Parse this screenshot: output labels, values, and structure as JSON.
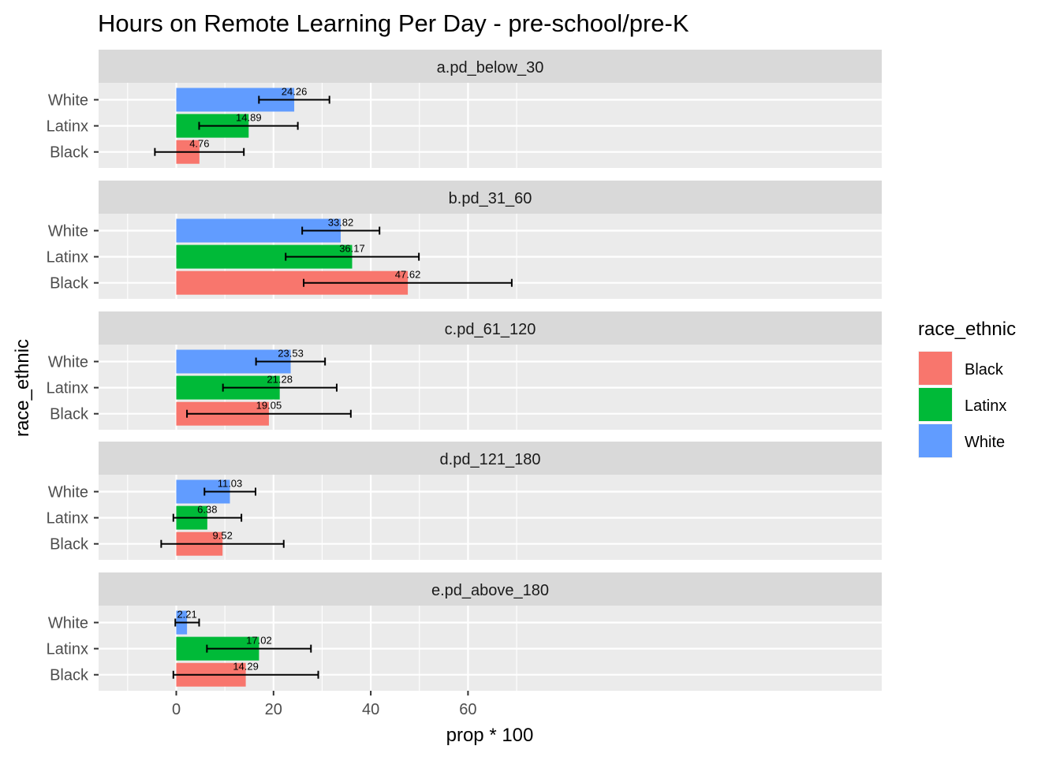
{
  "chart_data": {
    "type": "bar",
    "title": "Hours on Remote Learning Per Day  - pre-school/pre-K",
    "xlabel": "prop * 100",
    "ylabel": "race_ethnic",
    "xlim": [
      -8,
      72
    ],
    "x_ticks": [
      0,
      20,
      40,
      60
    ],
    "grid": true,
    "legend": {
      "title": "race_ethnic",
      "position": "right",
      "entries": [
        {
          "label": "Black",
          "color": "#F8766D"
        },
        {
          "label": "Latinx",
          "color": "#00BA38"
        },
        {
          "label": "White",
          "color": "#619CFF"
        }
      ]
    },
    "categories": [
      "White",
      "Latinx",
      "Black"
    ],
    "facets": [
      {
        "label": "a.pd_below_30",
        "bars": [
          {
            "group": "White",
            "value": 24.26,
            "value_label": "24.26",
            "ci_low": 17.0,
            "ci_high": 31.5
          },
          {
            "group": "Latinx",
            "value": 14.89,
            "value_label": "14.89",
            "ci_low": 4.7,
            "ci_high": 25.0
          },
          {
            "group": "Black",
            "value": 4.76,
            "value_label": "4.76",
            "ci_low": -4.4,
            "ci_high": 13.9
          }
        ]
      },
      {
        "label": "b.pd_31_60",
        "bars": [
          {
            "group": "White",
            "value": 33.82,
            "value_label": "33.82",
            "ci_low": 25.9,
            "ci_high": 41.8
          },
          {
            "group": "Latinx",
            "value": 36.17,
            "value_label": "36.17",
            "ci_low": 22.5,
            "ci_high": 49.9
          },
          {
            "group": "Black",
            "value": 47.62,
            "value_label": "47.62",
            "ci_low": 26.2,
            "ci_high": 69.0
          }
        ]
      },
      {
        "label": "c.pd_61_120",
        "bars": [
          {
            "group": "White",
            "value": 23.53,
            "value_label": "23.53",
            "ci_low": 16.4,
            "ci_high": 30.6
          },
          {
            "group": "Latinx",
            "value": 21.28,
            "value_label": "21.28",
            "ci_low": 9.6,
            "ci_high": 33.0
          },
          {
            "group": "Black",
            "value": 19.05,
            "value_label": "19.05",
            "ci_low": 2.2,
            "ci_high": 35.9
          }
        ]
      },
      {
        "label": "d.pd_121_180",
        "bars": [
          {
            "group": "White",
            "value": 11.03,
            "value_label": "11.03",
            "ci_low": 5.8,
            "ci_high": 16.3
          },
          {
            "group": "Latinx",
            "value": 6.38,
            "value_label": "6.38",
            "ci_low": -0.6,
            "ci_high": 13.4
          },
          {
            "group": "Black",
            "value": 9.52,
            "value_label": "9.52",
            "ci_low": -3.1,
            "ci_high": 22.1
          }
        ]
      },
      {
        "label": "e.pd_above_180",
        "bars": [
          {
            "group": "White",
            "value": 2.21,
            "value_label": "2.21",
            "ci_low": -0.2,
            "ci_high": 4.7
          },
          {
            "group": "Latinx",
            "value": 17.02,
            "value_label": "17.02",
            "ci_low": 6.3,
            "ci_high": 27.7
          },
          {
            "group": "Black",
            "value": 14.29,
            "value_label": "14.29",
            "ci_low": -0.6,
            "ci_high": 29.2
          }
        ]
      }
    ]
  }
}
